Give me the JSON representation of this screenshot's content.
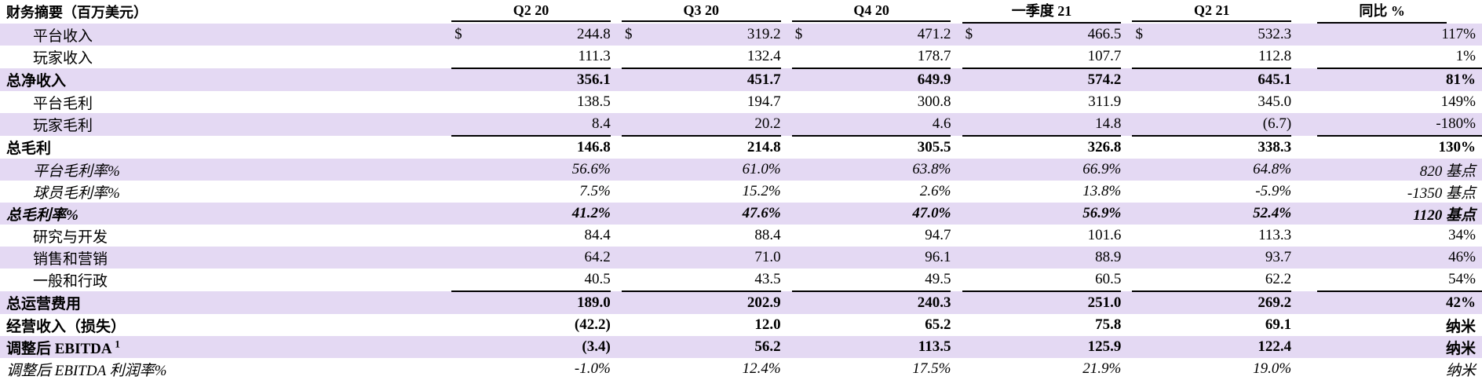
{
  "header": {
    "title": "财务摘要（百万美元）",
    "columns": [
      "Q2 20",
      "Q3 20",
      "Q4 20",
      "一季度 21",
      "Q2 21",
      "同比 %"
    ]
  },
  "currency_symbol": "$",
  "rows": [
    {
      "label": "平台收入",
      "values": [
        "244.8",
        "319.2",
        "471.2",
        "466.5",
        "532.3"
      ],
      "yoy": "117%"
    },
    {
      "label": "玩家收入",
      "values": [
        "111.3",
        "132.4",
        "178.7",
        "107.7",
        "112.8"
      ],
      "yoy": "1%"
    },
    {
      "label": "总净收入",
      "values": [
        "356.1",
        "451.7",
        "649.9",
        "574.2",
        "645.1"
      ],
      "yoy": "81%"
    },
    {
      "label": "平台毛利",
      "values": [
        "138.5",
        "194.7",
        "300.8",
        "311.9",
        "345.0"
      ],
      "yoy": "149%"
    },
    {
      "label": "玩家毛利",
      "values": [
        "8.4",
        "20.2",
        "4.6",
        "14.8",
        "(6.7)"
      ],
      "yoy": "-180%"
    },
    {
      "label": "总毛利",
      "values": [
        "146.8",
        "214.8",
        "305.5",
        "326.8",
        "338.3"
      ],
      "yoy": "130%"
    },
    {
      "label": "平台毛利率%",
      "values": [
        "56.6%",
        "61.0%",
        "63.8%",
        "66.9%",
        "64.8%"
      ],
      "yoy": "820 基点"
    },
    {
      "label": "球员毛利率%",
      "values": [
        "7.5%",
        "15.2%",
        "2.6%",
        "13.8%",
        "-5.9%"
      ],
      "yoy": "-1350 基点"
    },
    {
      "label": "总毛利率%",
      "values": [
        "41.2%",
        "47.6%",
        "47.0%",
        "56.9%",
        "52.4%"
      ],
      "yoy": "1120 基点"
    },
    {
      "label": "研究与开发",
      "values": [
        "84.4",
        "88.4",
        "94.7",
        "101.6",
        "113.3"
      ],
      "yoy": "34%"
    },
    {
      "label": "销售和营销",
      "values": [
        "64.2",
        "71.0",
        "96.1",
        "88.9",
        "93.7"
      ],
      "yoy": "46%"
    },
    {
      "label": "一般和行政",
      "values": [
        "40.5",
        "43.5",
        "49.5",
        "60.5",
        "62.2"
      ],
      "yoy": "54%"
    },
    {
      "label": "总运营费用",
      "values": [
        "189.0",
        "202.9",
        "240.3",
        "251.0",
        "269.2"
      ],
      "yoy": "42%"
    },
    {
      "label": "经营收入（损失）",
      "values": [
        "(42.2)",
        "12.0",
        "65.2",
        "75.8",
        "69.1"
      ],
      "yoy": "纳米"
    },
    {
      "label": "调整后 EBITDA",
      "label_sup": "1",
      "values": [
        "(3.4)",
        "56.2",
        "113.5",
        "125.9",
        "122.4"
      ],
      "yoy": "纳米"
    },
    {
      "label": "调整后 EBITDA 利润率%",
      "values": [
        "-1.0%",
        "12.4%",
        "17.5%",
        "21.9%",
        "19.0%"
      ],
      "yoy": "纳米"
    }
  ]
}
